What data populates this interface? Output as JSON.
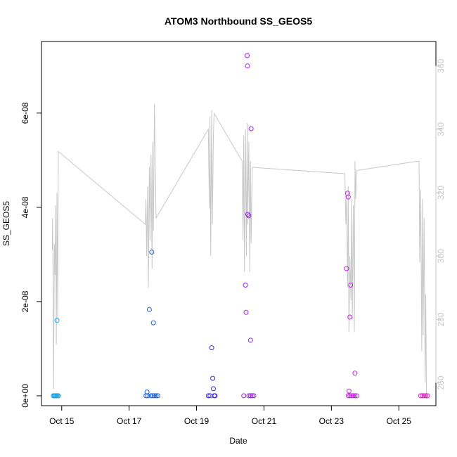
{
  "chart_data": {
    "type": "scatter",
    "title": "ATOM3 Northbound SS_GEOS5",
    "xlabel": "Date",
    "ylabel": "SS_GEOS5",
    "x_ticks": [
      {
        "label": "Oct 15",
        "value": 15
      },
      {
        "label": "Oct 17",
        "value": 17
      },
      {
        "label": "Oct 19",
        "value": 19
      },
      {
        "label": "Oct 21",
        "value": 21
      },
      {
        "label": "Oct 23",
        "value": 23
      },
      {
        "label": "Oct 25",
        "value": 25
      }
    ],
    "y_ticks_left": [
      {
        "label": "0e+00",
        "value": 0
      },
      {
        "label": "2e-08",
        "value": 2e-08
      },
      {
        "label": "4e-08",
        "value": 4e-08
      },
      {
        "label": "6e-08",
        "value": 6e-08
      }
    ],
    "y_ticks_right": [
      {
        "label": "260",
        "value": 260
      },
      {
        "label": "280",
        "value": 280
      },
      {
        "label": "300",
        "value": 300
      },
      {
        "label": "320",
        "value": 320
      },
      {
        "label": "340",
        "value": 340
      },
      {
        "label": "360",
        "value": 360
      }
    ],
    "xlim": [
      14.4,
      26.1
    ],
    "ylim_left": [
      -2.1e-09,
      7.52e-08
    ],
    "ylim_right": [
      252.8,
      367.7
    ],
    "grid": false,
    "legend": "none",
    "colors": {
      "axis": "#000000",
      "secondary_axis": "#c8c8c8",
      "line": "#c8c8c8"
    },
    "series": [
      {
        "color": "#1aa6e6",
        "points": [
          [
            14.75,
            0
          ],
          [
            14.78,
            0
          ],
          [
            14.8,
            0
          ],
          [
            14.82,
            0
          ],
          [
            14.85,
            0
          ],
          [
            14.88,
            0
          ],
          [
            14.9,
            0
          ],
          [
            14.86,
            1.6e-08
          ]
        ]
      },
      {
        "color": "#1a5fe6",
        "points": [
          [
            17.5,
            0
          ],
          [
            17.53,
            8e-10
          ],
          [
            17.55,
            0
          ],
          [
            17.6,
            1.83e-08
          ],
          [
            17.65,
            0
          ],
          [
            17.67,
            3.05e-08
          ],
          [
            17.7,
            0
          ],
          [
            17.72,
            1.55e-08
          ],
          [
            17.75,
            0
          ],
          [
            17.8,
            0
          ],
          [
            17.85,
            0
          ]
        ]
      },
      {
        "color": "#3f2be6",
        "points": [
          [
            19.35,
            0
          ],
          [
            19.4,
            0
          ],
          [
            19.45,
            1.02e-08
          ],
          [
            19.48,
            3.7e-09
          ],
          [
            19.5,
            1.5e-09
          ],
          [
            19.52,
            0
          ],
          [
            19.55,
            0
          ]
        ]
      },
      {
        "color": "#9a22e8",
        "points": [
          [
            20.4,
            0
          ],
          [
            20.45,
            2.35e-08
          ],
          [
            20.47,
            1.77e-08
          ],
          [
            20.5,
            7.22e-08
          ],
          [
            20.51,
            7e-08
          ],
          [
            20.52,
            3.85e-08
          ],
          [
            20.55,
            3.82e-08
          ],
          [
            20.6,
            1.18e-08
          ],
          [
            20.62,
            5.67e-08
          ],
          [
            20.55,
            0
          ],
          [
            20.6,
            0
          ],
          [
            20.65,
            0
          ],
          [
            20.7,
            0
          ]
        ]
      },
      {
        "color": "#c41ee6",
        "points": [
          [
            23.45,
            2.7e-08
          ],
          [
            23.48,
            4.3e-08
          ],
          [
            23.5,
            4.22e-08
          ],
          [
            23.52,
            1e-09
          ],
          [
            23.55,
            1.67e-08
          ],
          [
            23.57,
            2.35e-08
          ],
          [
            23.7,
            4.8e-09
          ],
          [
            23.5,
            0
          ],
          [
            23.55,
            0
          ],
          [
            23.6,
            0
          ],
          [
            23.65,
            0
          ],
          [
            23.7,
            0
          ],
          [
            23.75,
            0
          ]
        ]
      },
      {
        "color": "#e61ec4",
        "points": [
          [
            25.65,
            0
          ],
          [
            25.7,
            0
          ],
          [
            25.75,
            0
          ],
          [
            25.8,
            0
          ],
          [
            25.85,
            0
          ]
        ]
      }
    ],
    "line_series": {
      "axis": "right",
      "points": [
        [
          14.72,
          302
        ],
        [
          14.73,
          312
        ],
        [
          14.74,
          298
        ],
        [
          14.76,
          258
        ],
        [
          14.78,
          304
        ],
        [
          14.8,
          294
        ],
        [
          14.82,
          316
        ],
        [
          14.84,
          272
        ],
        [
          14.86,
          320
        ],
        [
          14.88,
          280
        ],
        [
          14.9,
          333
        ],
        [
          17.48,
          310
        ],
        [
          17.5,
          318
        ],
        [
          17.52,
          300
        ],
        [
          17.55,
          322
        ],
        [
          17.57,
          290
        ],
        [
          17.6,
          328
        ],
        [
          17.62,
          305
        ],
        [
          17.65,
          332
        ],
        [
          17.68,
          296
        ],
        [
          17.7,
          336
        ],
        [
          17.72,
          308
        ],
        [
          17.75,
          348
        ],
        [
          17.78,
          325
        ],
        [
          17.8,
          312
        ],
        [
          19.35,
          340
        ],
        [
          19.38,
          315
        ],
        [
          19.4,
          344
        ],
        [
          19.42,
          300
        ],
        [
          19.45,
          346
        ],
        [
          19.47,
          310
        ],
        [
          19.5,
          338
        ],
        [
          19.52,
          345
        ],
        [
          20.35,
          330
        ],
        [
          20.38,
          305
        ],
        [
          20.4,
          338
        ],
        [
          20.42,
          295
        ],
        [
          20.45,
          340
        ],
        [
          20.48,
          300
        ],
        [
          20.5,
          342
        ],
        [
          20.52,
          310
        ],
        [
          20.55,
          336
        ],
        [
          20.58,
          295
        ],
        [
          20.6,
          330
        ],
        [
          20.62,
          304
        ],
        [
          20.65,
          328
        ],
        [
          23.4,
          326
        ],
        [
          23.43,
          310
        ],
        [
          23.45,
          318
        ],
        [
          23.48,
          290
        ],
        [
          23.5,
          322
        ],
        [
          23.52,
          276
        ],
        [
          23.55,
          300
        ],
        [
          23.58,
          286
        ],
        [
          23.6,
          318
        ],
        [
          23.62,
          280
        ],
        [
          23.65,
          316
        ],
        [
          23.68,
          276
        ],
        [
          23.7,
          330
        ],
        [
          23.72,
          318
        ],
        [
          23.75,
          327
        ],
        [
          25.6,
          330
        ],
        [
          25.62,
          298
        ],
        [
          25.65,
          321
        ],
        [
          25.68,
          270
        ],
        [
          25.7,
          318
        ],
        [
          25.72,
          275
        ],
        [
          25.75,
          312
        ],
        [
          25.78,
          260
        ],
        [
          25.8,
          288
        ],
        [
          25.82,
          255
        ]
      ]
    }
  }
}
